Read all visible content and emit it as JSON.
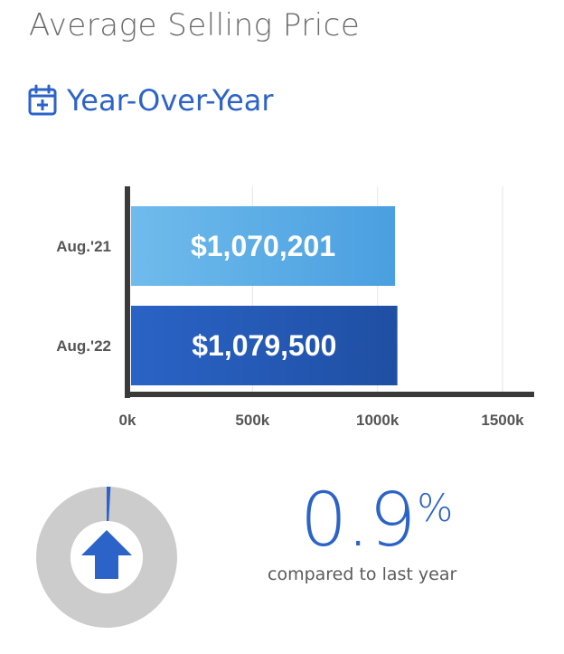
{
  "header": {
    "title": "Average Selling Price",
    "subtitle": "Year-Over-Year",
    "subtitle_icon": "calendar-plus-icon"
  },
  "colors": {
    "accent": "#2b63c8",
    "bar_2021": "#4a9fe0",
    "bar_2022": "#1f4fa3",
    "axis": "#3a3a3a",
    "donut_track": "#cccccc",
    "arrow": "#2b63c8"
  },
  "chart_data": {
    "type": "bar",
    "orientation": "horizontal",
    "categories": [
      "Aug.'21",
      "Aug.'22"
    ],
    "values": [
      1070201,
      1079500
    ],
    "data_labels": [
      "$1,070,201",
      "$1,079,500"
    ],
    "xlim": [
      0,
      1500000
    ],
    "xticks": [
      0,
      500000,
      1000000,
      1500000
    ],
    "xtick_labels": [
      "0k",
      "500k",
      "1000k",
      "1500k"
    ],
    "grid": true
  },
  "change": {
    "value": "0.9",
    "unit": "%",
    "caption": "compared to last year",
    "direction": "up",
    "direction_icon": "arrow-up-icon",
    "fraction": 0.009
  }
}
